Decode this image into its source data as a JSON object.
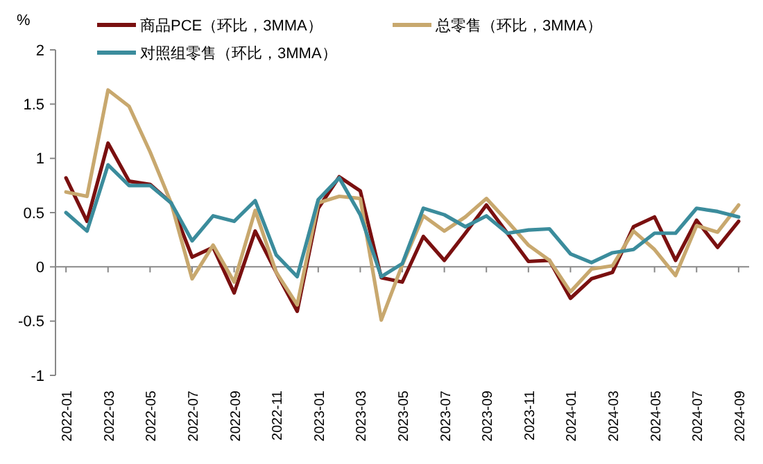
{
  "chart_data": {
    "type": "line",
    "ylabel": "%",
    "categories": [
      "2022-01",
      null,
      "2022-03",
      null,
      "2022-05",
      null,
      "2022-07",
      null,
      "2022-09",
      null,
      "2022-11",
      null,
      "2023-01",
      null,
      "2023-03",
      null,
      "2023-05",
      null,
      "2023-07",
      null,
      "2023-09",
      null,
      "2023-11",
      null,
      "2024-01",
      null,
      "2024-03",
      null,
      "2024-05",
      null,
      "2024-07",
      null,
      "2024-09"
    ],
    "series": [
      {
        "name": "商品PCE（环比，3MMA）",
        "color": "#7a1010",
        "values": [
          0.82,
          0.42,
          1.14,
          0.79,
          0.76,
          0.59,
          0.09,
          0.18,
          -0.24,
          0.33,
          -0.05,
          -0.41,
          0.54,
          0.83,
          0.7,
          -0.1,
          -0.14,
          0.28,
          0.06,
          0.31,
          0.57,
          0.31,
          0.05,
          0.06,
          -0.29,
          -0.11,
          -0.05,
          0.37,
          0.46,
          0.06,
          0.43,
          0.18,
          0.42
        ]
      },
      {
        "name": "总零售（环比，3MMA）",
        "color": "#c8a86e",
        "values": [
          0.69,
          0.65,
          1.63,
          1.48,
          1.06,
          0.59,
          -0.11,
          0.2,
          -0.14,
          0.52,
          -0.05,
          -0.35,
          0.59,
          0.65,
          0.63,
          -0.49,
          0.02,
          0.47,
          0.33,
          0.46,
          0.63,
          0.42,
          0.2,
          0.06,
          -0.23,
          -0.02,
          0.01,
          0.33,
          0.16,
          -0.08,
          0.38,
          0.32,
          0.57
        ]
      },
      {
        "name": "对照组零售（环比，3MMA）",
        "color": "#3b8c9c",
        "values": [
          0.5,
          0.33,
          0.94,
          0.75,
          0.75,
          0.59,
          0.24,
          0.47,
          0.42,
          0.61,
          0.11,
          -0.09,
          0.62,
          0.82,
          0.48,
          -0.09,
          0.03,
          0.54,
          0.48,
          0.37,
          0.47,
          0.31,
          0.34,
          0.35,
          0.12,
          0.04,
          0.13,
          0.16,
          0.31,
          0.31,
          0.54,
          0.51,
          0.46
        ]
      }
    ],
    "ylim": [
      -1,
      2
    ],
    "yticks": [
      -1,
      -0.5,
      0,
      0.5,
      1,
      1.5,
      2
    ],
    "legend": "top",
    "line_style": "solid",
    "marker": "none"
  }
}
